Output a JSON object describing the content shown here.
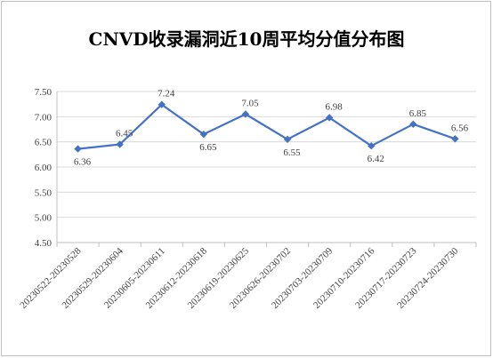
{
  "chart_data": {
    "type": "line",
    "title": "CNVD收录漏洞近10周平均分值分布图",
    "xlabel": "",
    "ylabel": "",
    "categories": [
      "20230522-20230528",
      "20230529-20230604",
      "20230605-20230611",
      "20230612-20230618",
      "20230619-20230625",
      "20230626-20230702",
      "20230703-20230709",
      "20230710-20230716",
      "20230717-20230723",
      "20230724-20230730"
    ],
    "series": [
      {
        "values": [
          6.36,
          6.45,
          7.24,
          6.65,
          7.05,
          6.55,
          6.98,
          6.42,
          6.85,
          6.56
        ],
        "labels": [
          "6.36",
          "6.45",
          "7.24",
          "6.65",
          "7.05",
          "6.55",
          "6.98",
          "6.42",
          "6.85",
          "6.56"
        ],
        "color": "#4472c4"
      }
    ],
    "ylim": [
      4.5,
      7.5
    ],
    "yticks": [
      "4.50",
      "5.00",
      "5.50",
      "6.00",
      "6.50",
      "7.00",
      "7.50"
    ],
    "grid": true,
    "legend": "none"
  }
}
